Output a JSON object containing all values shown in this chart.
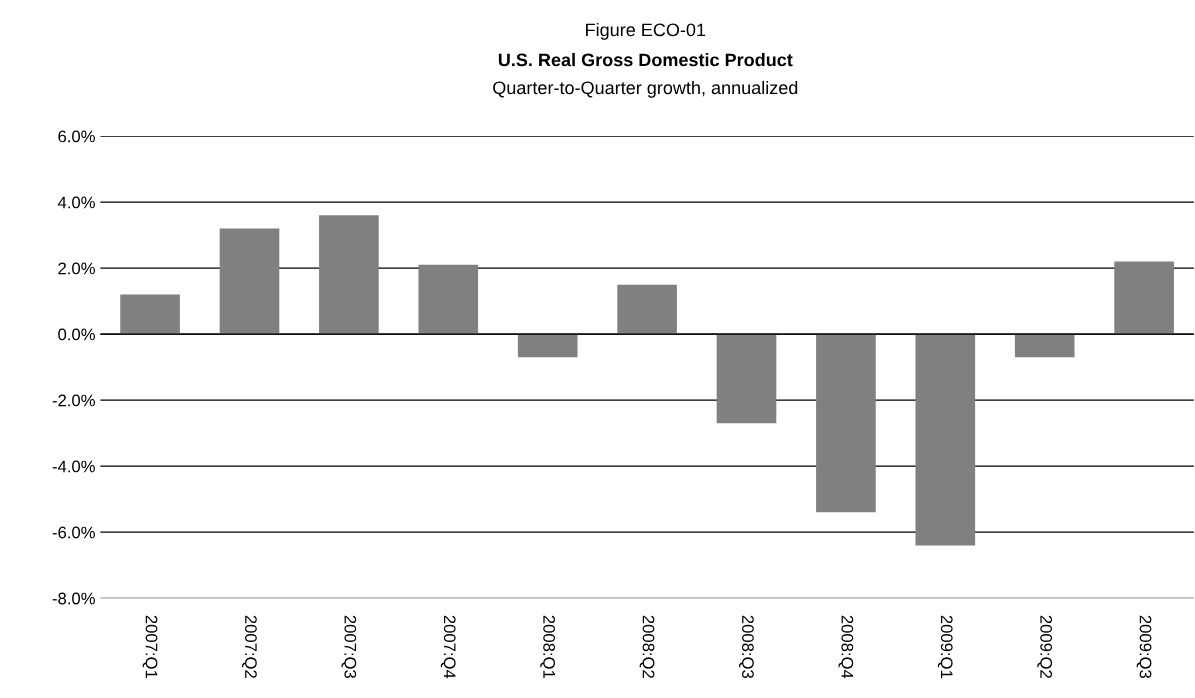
{
  "chart_data": {
    "type": "bar",
    "title": "U.S. Real Gross Domestic Product",
    "subtitle": "Quarter-to-Quarter growth, annualized",
    "annotations": [
      "Figure ECO-01"
    ],
    "categories": [
      "2007:Q1",
      "2007:Q2",
      "2007:Q3",
      "2007:Q4",
      "2008:Q1",
      "2008:Q2",
      "2008:Q3",
      "2008:Q4",
      "2009:Q1",
      "2009:Q2",
      "2009:Q3"
    ],
    "values": [
      1.2,
      3.2,
      3.6,
      2.1,
      -0.7,
      1.5,
      -2.7,
      -5.4,
      -6.4,
      -0.7,
      2.2
    ],
    "color": "#808080",
    "ylim": [
      -8,
      6
    ],
    "yticks": [
      {
        "value": -8,
        "label": "-8.0%"
      },
      {
        "value": -6,
        "label": "-6.0%"
      },
      {
        "value": -4,
        "label": "-4.0%"
      },
      {
        "value": -2,
        "label": "-2.0%"
      },
      {
        "value": 0,
        "label": "0.0%"
      },
      {
        "value": 2,
        "label": "2.0%"
      },
      {
        "value": 4,
        "label": "4.0%"
      },
      {
        "value": 6,
        "label": "6.0%"
      }
    ],
    "grid": "y",
    "legend": false
  }
}
